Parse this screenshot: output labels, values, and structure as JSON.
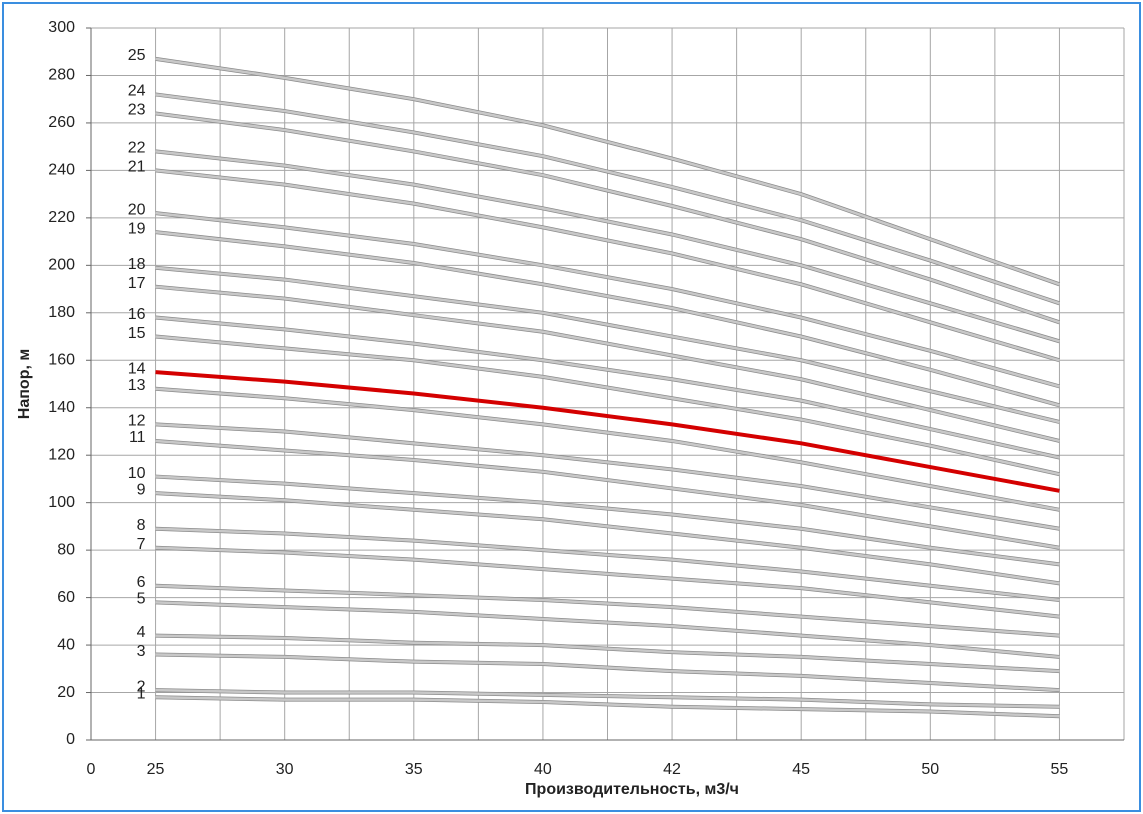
{
  "chart_data": {
    "type": "line",
    "x_label": "Производительность, м3/ч",
    "y_label": "Напор, м",
    "categories": [
      "0",
      "25",
      "30",
      "35",
      "40",
      "42",
      "45",
      "50",
      "55"
    ],
    "ylim": [
      0,
      300
    ],
    "yticks": [
      0,
      20,
      40,
      60,
      80,
      100,
      120,
      140,
      160,
      180,
      200,
      220,
      240,
      260,
      280,
      300
    ],
    "grid": true,
    "series": [
      {
        "name": "1",
        "color": "#c8c8c8",
        "values": [
          null,
          18,
          17,
          17,
          16,
          14,
          13,
          12,
          10
        ]
      },
      {
        "name": "2",
        "color": "#c8c8c8",
        "values": [
          null,
          21,
          20,
          20,
          19,
          18,
          17,
          15,
          14
        ]
      },
      {
        "name": "3",
        "color": "#c8c8c8",
        "values": [
          null,
          36,
          35,
          33,
          32,
          29,
          27,
          24,
          21
        ]
      },
      {
        "name": "4",
        "color": "#c8c8c8",
        "values": [
          null,
          44,
          43,
          41,
          40,
          37,
          35,
          32,
          29
        ]
      },
      {
        "name": "5",
        "color": "#c8c8c8",
        "values": [
          null,
          58,
          56,
          54,
          51,
          48,
          44,
          40,
          35
        ]
      },
      {
        "name": "6",
        "color": "#c8c8c8",
        "values": [
          null,
          65,
          63,
          61,
          59,
          56,
          52,
          48,
          44
        ]
      },
      {
        "name": "7",
        "color": "#c8c8c8",
        "values": [
          null,
          81,
          79,
          76,
          72,
          68,
          64,
          58,
          52
        ]
      },
      {
        "name": "8",
        "color": "#c8c8c8",
        "values": [
          null,
          89,
          87,
          84,
          80,
          76,
          71,
          65,
          59
        ]
      },
      {
        "name": "9",
        "color": "#c8c8c8",
        "values": [
          null,
          104,
          101,
          97,
          93,
          87,
          81,
          74,
          66
        ]
      },
      {
        "name": "10",
        "color": "#c8c8c8",
        "values": [
          null,
          111,
          108,
          104,
          100,
          95,
          89,
          81,
          74
        ]
      },
      {
        "name": "11",
        "color": "#c8c8c8",
        "values": [
          null,
          126,
          122,
          118,
          113,
          106,
          99,
          90,
          81
        ]
      },
      {
        "name": "12",
        "color": "#c8c8c8",
        "values": [
          null,
          133,
          130,
          125,
          120,
          114,
          107,
          98,
          89
        ]
      },
      {
        "name": "13",
        "color": "#c8c8c8",
        "values": [
          null,
          148,
          144,
          139,
          133,
          126,
          117,
          107,
          97
        ]
      },
      {
        "name": "14",
        "color": "#d40000",
        "values": [
          null,
          155,
          151,
          146,
          140,
          133,
          125,
          115,
          105
        ]
      },
      {
        "name": "15",
        "color": "#c8c8c8",
        "values": [
          null,
          170,
          165,
          160,
          153,
          144,
          135,
          124,
          112
        ]
      },
      {
        "name": "16",
        "color": "#c8c8c8",
        "values": [
          null,
          178,
          173,
          167,
          160,
          152,
          143,
          131,
          119
        ]
      },
      {
        "name": "17",
        "color": "#c8c8c8",
        "values": [
          null,
          191,
          186,
          179,
          172,
          162,
          152,
          139,
          126
        ]
      },
      {
        "name": "18",
        "color": "#c8c8c8",
        "values": [
          null,
          199,
          194,
          187,
          180,
          170,
          160,
          147,
          134
        ]
      },
      {
        "name": "19",
        "color": "#c8c8c8",
        "values": [
          null,
          214,
          208,
          201,
          192,
          182,
          170,
          156,
          141
        ]
      },
      {
        "name": "20",
        "color": "#c8c8c8",
        "values": [
          null,
          222,
          216,
          209,
          200,
          190,
          178,
          164,
          149
        ]
      },
      {
        "name": "21",
        "color": "#c8c8c8",
        "values": [
          null,
          240,
          234,
          226,
          216,
          205,
          192,
          176,
          160
        ]
      },
      {
        "name": "22",
        "color": "#c8c8c8",
        "values": [
          null,
          248,
          242,
          234,
          224,
          213,
          200,
          184,
          168
        ]
      },
      {
        "name": "23",
        "color": "#c8c8c8",
        "values": [
          null,
          264,
          257,
          248,
          238,
          225,
          211,
          194,
          176
        ]
      },
      {
        "name": "24",
        "color": "#c8c8c8",
        "values": [
          null,
          272,
          265,
          256,
          246,
          233,
          219,
          202,
          184
        ]
      },
      {
        "name": "25",
        "color": "#c8c8c8",
        "values": [
          null,
          287,
          279,
          270,
          259,
          245,
          230,
          211,
          192
        ]
      }
    ]
  }
}
